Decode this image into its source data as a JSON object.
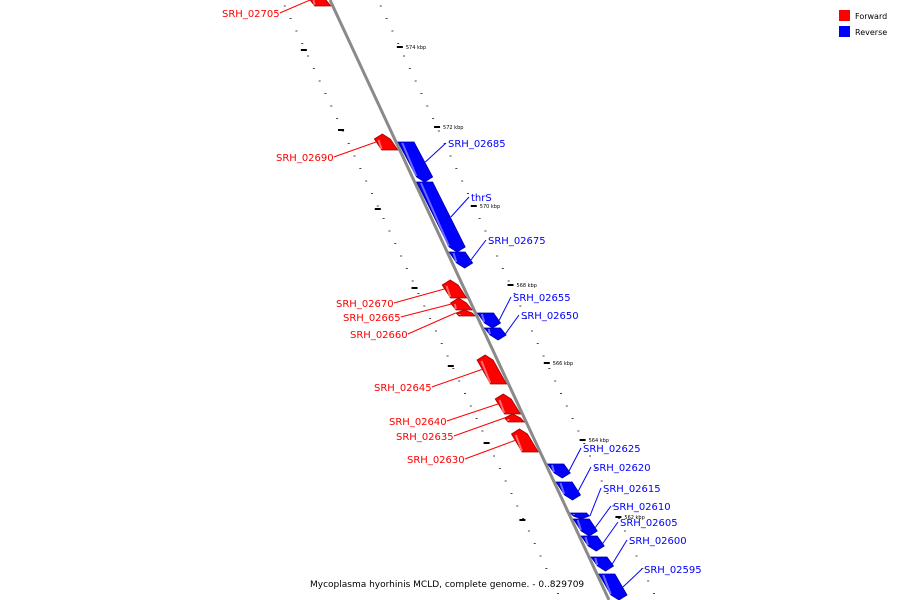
{
  "legend": [
    {
      "label": "Forward",
      "color": "#ff0000"
    },
    {
      "label": "Reverse",
      "color": "#0000ff"
    }
  ],
  "caption": "Mycoplasma hyorhinis MCLD, complete genome. - 0..829709",
  "ticks": [
    "574 kbp",
    "572 kbp",
    "570 kbp",
    "568 kbp",
    "566 kbp",
    "564 kbp",
    "562 kbp"
  ],
  "genes": [
    {
      "label": "SRH_02705",
      "strand": "forward"
    },
    {
      "label": "SRH_02690",
      "strand": "forward"
    },
    {
      "label": "SRH_02685",
      "strand": "reverse"
    },
    {
      "label": "thrS",
      "strand": "reverse"
    },
    {
      "label": "SRH_02675",
      "strand": "reverse"
    },
    {
      "label": "SRH_02670",
      "strand": "forward"
    },
    {
      "label": "SRH_02665",
      "strand": "forward"
    },
    {
      "label": "SRH_02660",
      "strand": "forward"
    },
    {
      "label": "SRH_02655",
      "strand": "reverse"
    },
    {
      "label": "SRH_02650",
      "strand": "reverse"
    },
    {
      "label": "SRH_02645",
      "strand": "forward"
    },
    {
      "label": "SRH_02640",
      "strand": "forward"
    },
    {
      "label": "SRH_02635",
      "strand": "forward"
    },
    {
      "label": "SRH_02630",
      "strand": "forward"
    },
    {
      "label": "SRH_02625",
      "strand": "reverse"
    },
    {
      "label": "SRH_02620",
      "strand": "reverse"
    },
    {
      "label": "SRH_02615",
      "strand": "reverse"
    },
    {
      "label": "SRH_02610",
      "strand": "reverse"
    },
    {
      "label": "SRH_02605",
      "strand": "reverse"
    },
    {
      "label": "SRH_02600",
      "strand": "reverse"
    },
    {
      "label": "SRH_02595",
      "strand": "reverse"
    }
  ]
}
